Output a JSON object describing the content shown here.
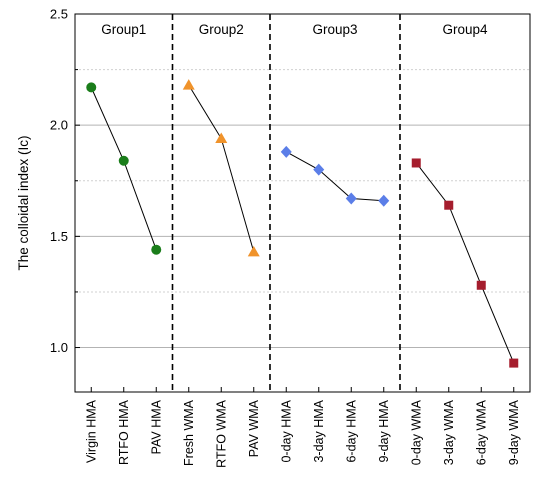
{
  "chart_data": {
    "type": "scatter",
    "title": "",
    "xlabel": "",
    "ylabel": "The colloidal index (Ic)",
    "ylim": [
      0.8,
      2.5
    ],
    "yticks": [
      1.0,
      1.5,
      2.0,
      2.5
    ],
    "y_minor_gridlines": [
      1.25,
      1.75,
      2.25
    ],
    "grid": "horizontal",
    "categories": [
      "Virgin HMA",
      "RTFO HMA",
      "PAV HMA",
      "Fresh WMA",
      "RTFO WMA",
      "PAV WMA",
      "0-day HMA",
      "3-day HMA",
      "6-day HMA",
      "9-day HMA",
      "0-day WMA",
      "3-day WMA",
      "6-day WMA",
      "9-day WMA"
    ],
    "series": [
      {
        "name": "Group1",
        "marker": "circle",
        "color": "#1a7d1a",
        "categories": [
          "Virgin HMA",
          "RTFO HMA",
          "PAV HMA"
        ],
        "values": [
          2.17,
          1.84,
          1.44
        ]
      },
      {
        "name": "Group2",
        "marker": "triangle",
        "color": "#f0932b",
        "categories": [
          "Fresh WMA",
          "RTFO WMA",
          "PAV WMA"
        ],
        "values": [
          2.18,
          1.94,
          1.43
        ]
      },
      {
        "name": "Group3",
        "marker": "diamond",
        "color": "#5b7ee8",
        "categories": [
          "0-day HMA",
          "3-day HMA",
          "6-day HMA",
          "9-day HMA"
        ],
        "values": [
          1.88,
          1.8,
          1.67,
          1.66
        ]
      },
      {
        "name": "Group4",
        "marker": "square",
        "color": "#a51d2d",
        "categories": [
          "0-day WMA",
          "3-day WMA",
          "6-day WMA",
          "9-day WMA"
        ],
        "values": [
          1.83,
          1.64,
          1.28,
          0.93
        ]
      }
    ]
  }
}
